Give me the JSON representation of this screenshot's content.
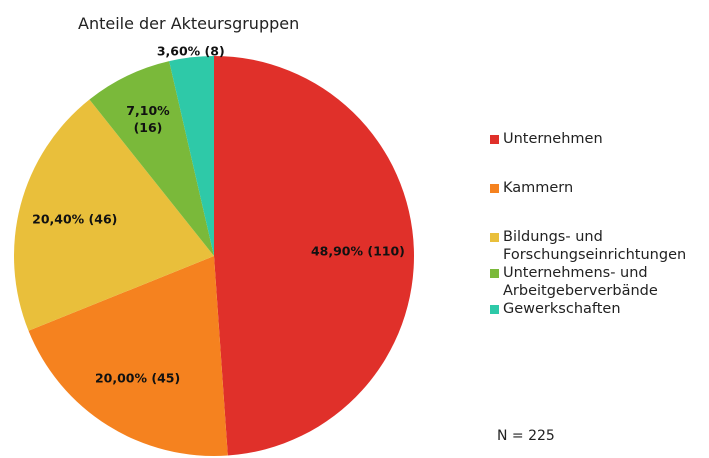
{
  "chart_data": {
    "type": "pie",
    "title": "Anteile der Akteursgruppen",
    "categories": [
      "Unternehmen",
      "Kammern",
      "Bildungs- und Forschungseinrichtungen",
      "Unternehmens- und Arbeitgeberverbände",
      "Gewerkschaften"
    ],
    "values": [
      48.9,
      20.0,
      20.4,
      7.1,
      3.6
    ],
    "value_labels": [
      "48,90% (110)",
      "20,00% (45)",
      "20,40% (46)",
      "7,10% (16)",
      "3,60% (8)"
    ],
    "colors": [
      "#e0302a",
      "#f5821f",
      "#e9bf3b",
      "#7ab93a",
      "#2ec9a8"
    ],
    "legend": "right",
    "annotation": "N = 225"
  }
}
